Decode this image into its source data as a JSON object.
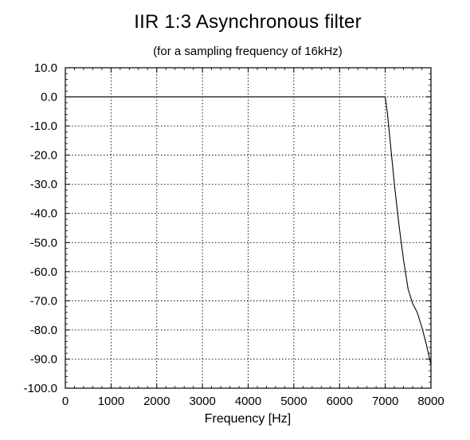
{
  "chart_data": {
    "type": "line",
    "title": "IIR 1:3 Asynchronous filter",
    "subtitle": "(for a sampling frequency of 16kHz)",
    "xlabel": "Frequency [Hz]",
    "ylabel": "",
    "xlim": [
      0,
      8000
    ],
    "ylim": [
      -100,
      10
    ],
    "x_ticks": [
      0,
      1000,
      2000,
      3000,
      4000,
      5000,
      6000,
      7000,
      8000
    ],
    "x_tick_labels": [
      "0",
      "1000",
      "2000",
      "3000",
      "4000",
      "5000",
      "6000",
      "7000",
      "8000"
    ],
    "y_ticks": [
      10,
      0,
      -10,
      -20,
      -30,
      -40,
      -50,
      -60,
      -70,
      -80,
      -90,
      -100
    ],
    "y_tick_labels": [
      "10.0",
      "0.0",
      "-10.0",
      "-20.0",
      "-30.0",
      "-40.0",
      "-50.0",
      "-60.0",
      "-70.0",
      "-80.0",
      "-90.0",
      "-100.0"
    ],
    "grid": true,
    "series": [
      {
        "color": "#000000",
        "x": [
          0,
          1000,
          2000,
          3000,
          4000,
          5000,
          6000,
          6900,
          7000,
          7050,
          7100,
          7200,
          7300,
          7400,
          7500,
          7600,
          7700,
          7800,
          7900,
          8000
        ],
        "y": [
          0.0,
          0.0,
          0.0,
          0.0,
          0.0,
          0.0,
          0.0,
          0.0,
          0.0,
          -6,
          -14,
          -30,
          -44,
          -56,
          -66,
          -71,
          -74,
          -79,
          -85,
          -92
        ]
      }
    ]
  }
}
